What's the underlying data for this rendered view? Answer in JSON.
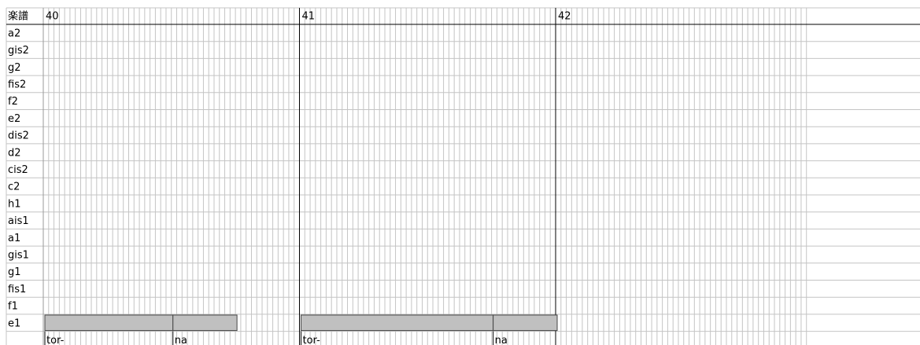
{
  "header": {
    "label": "楽譜",
    "measures": [
      40,
      41,
      42
    ]
  },
  "pitches": [
    "a2",
    "gis2",
    "g2",
    "fis2",
    "f2",
    "e2",
    "dis2",
    "d2",
    "cis2",
    "c2",
    "h1",
    "ais1",
    "a1",
    "gis1",
    "g1",
    "fis1",
    "f1",
    "e1"
  ],
  "notes": [
    {
      "pitch": "e1",
      "measure": 40,
      "start": 0,
      "length": 24,
      "lyric": "tor-"
    },
    {
      "pitch": "e1",
      "measure": 40,
      "start": 24,
      "length": 12,
      "lyric": "na"
    },
    {
      "pitch": "e1",
      "measure": 41,
      "start": 0,
      "length": 36,
      "lyric": "tor-"
    },
    {
      "pitch": "e1",
      "measure": 41,
      "start": 36,
      "length": 12,
      "lyric": "na"
    }
  ]
}
